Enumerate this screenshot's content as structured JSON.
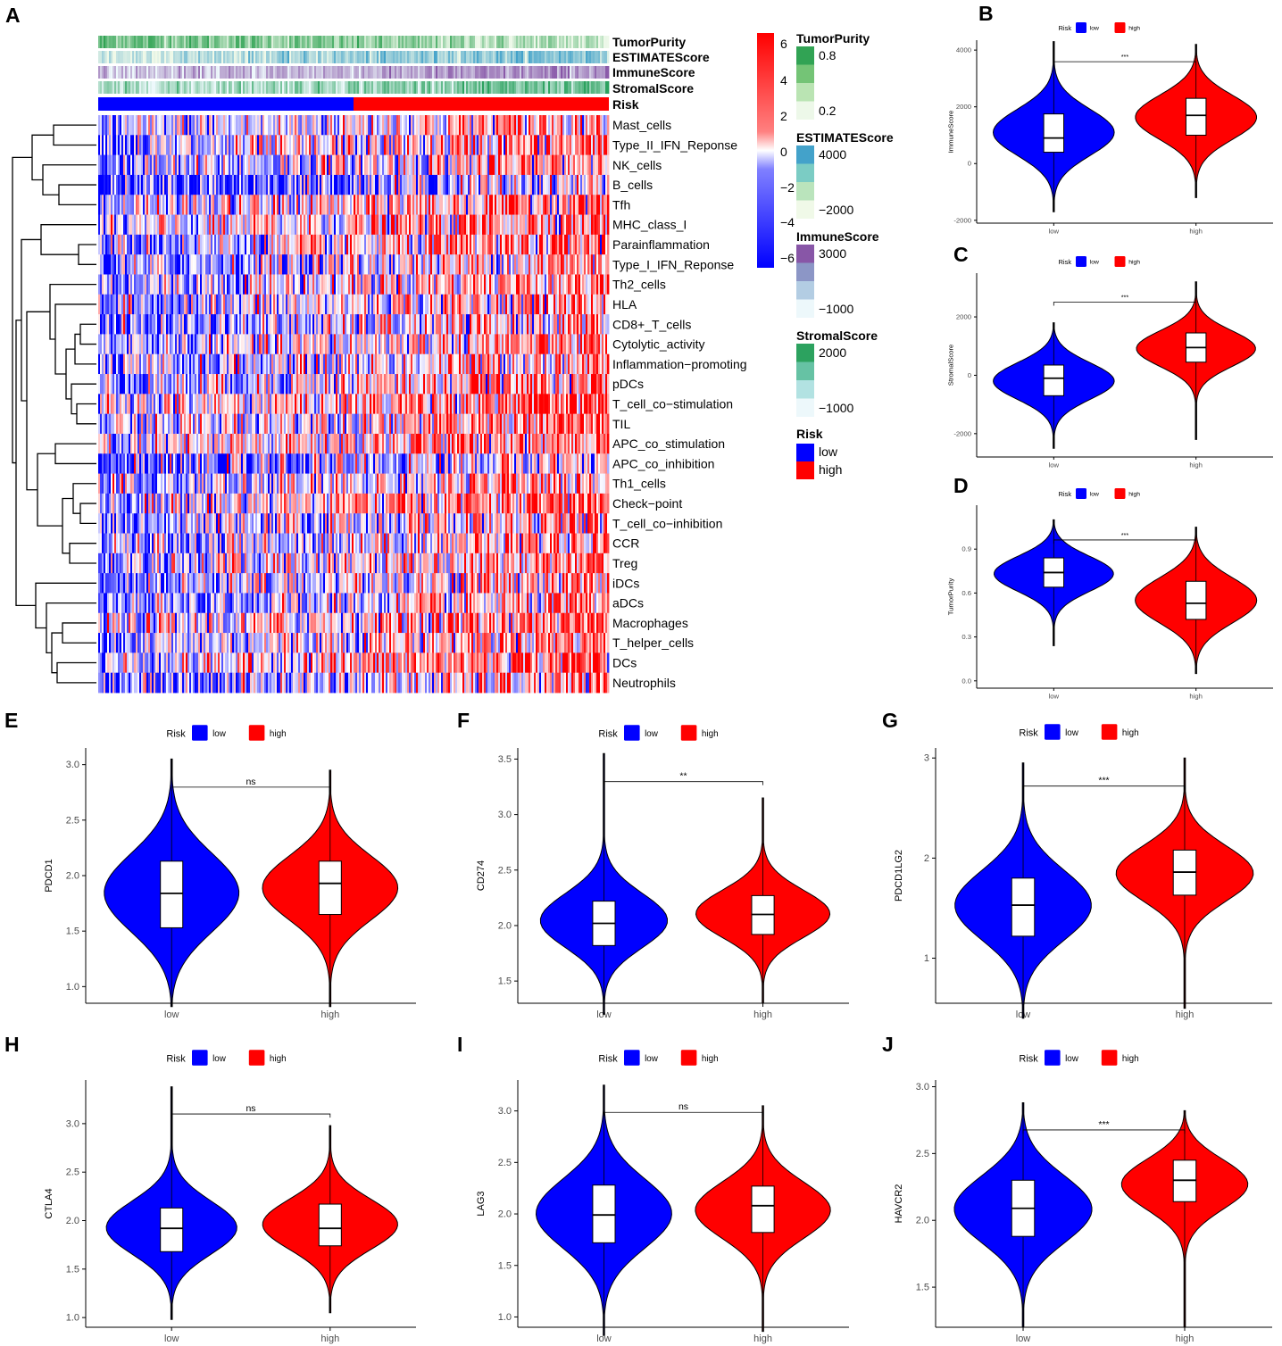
{
  "panels": {
    "A": "A",
    "B": "B",
    "C": "C",
    "D": "D",
    "E": "E",
    "F": "F",
    "G": "G",
    "H": "H",
    "I": "I",
    "J": "J"
  },
  "heatmap": {
    "annotation_labels": [
      "TumorPurity",
      "ESTIMATEScore",
      "ImmuneScore",
      "StromalScore",
      "Risk"
    ],
    "row_labels": [
      "Mast_cells",
      "Type_II_IFN_Reponse",
      "NK_cells",
      "B_cells",
      "Tfh",
      "MHC_class_I",
      "Parainflammation",
      "Type_I_IFN_Reponse",
      "Th2_cells",
      "HLA",
      "CD8+_T_cells",
      "Cytolytic_activity",
      "Inflammation−promoting",
      "pDCs",
      "T_cell_co−stimulation",
      "TIL",
      "APC_co_stimulation",
      "APC_co_inhibition",
      "Th1_cells",
      "Check−point",
      "T_cell_co−inhibition",
      "CCR",
      "Treg",
      "iDCs",
      "aDCs",
      "Macrophages",
      "T_helper_cells",
      "DCs",
      "Neutrophils"
    ],
    "colorbar_ticks": [
      "6",
      "4",
      "2",
      "0",
      "−2",
      "−4",
      "−6"
    ],
    "colors": {
      "high": "#ff0000",
      "mid": "#ffffff",
      "low": "#0000ff"
    },
    "legends": [
      {
        "title": "TumorPurity",
        "ticks": [
          "0.8",
          "0.2"
        ],
        "colors": [
          "#31a354",
          "#74c476",
          "#bae4b3",
          "#edf8e9"
        ]
      },
      {
        "title": "ESTIMATEScore",
        "ticks": [
          "4000",
          "−2000"
        ],
        "colors": [
          "#43a2ca",
          "#7bccc4",
          "#bae4bc",
          "#f0f9e8"
        ]
      },
      {
        "title": "ImmuneScore",
        "ticks": [
          "3000",
          "−1000"
        ],
        "colors": [
          "#8856a7",
          "#8c96c6",
          "#b3cde3",
          "#edf8fb"
        ]
      },
      {
        "title": "StromalScore",
        "ticks": [
          "2000",
          "−1000"
        ],
        "colors": [
          "#2ca25f",
          "#66c2a4",
          "#b2e2e2",
          "#edf8fb"
        ]
      },
      {
        "title": "Risk",
        "items": [
          {
            "label": "low",
            "color": "#0000ff"
          },
          {
            "label": "high",
            "color": "#ff0000"
          }
        ]
      }
    ]
  },
  "chart_data": [
    {
      "panel": "B",
      "type": "violin",
      "legend_title": "Risk",
      "categories": [
        "low",
        "high"
      ],
      "ylabel": "ImmuneScore",
      "yticks": [
        -2000,
        0,
        2000,
        4000
      ],
      "ylim": [
        -2100,
        4350
      ],
      "significance": "***",
      "series": [
        {
          "name": "low",
          "color": "#0000ff",
          "min": -1700,
          "max": 4300,
          "q1": 400,
          "median": 900,
          "q3": 1750
        },
        {
          "name": "high",
          "color": "#ff0000",
          "min": -1200,
          "max": 4200,
          "q1": 1000,
          "median": 1700,
          "q3": 2300
        }
      ]
    },
    {
      "panel": "C",
      "type": "violin",
      "legend_title": "Risk",
      "categories": [
        "low",
        "high"
      ],
      "ylabel": "StromalScore",
      "yticks": [
        -2000,
        0,
        2000
      ],
      "ylim": [
        -2800,
        3500
      ],
      "significance": "***",
      "series": [
        {
          "name": "low",
          "color": "#0000ff",
          "min": -2500,
          "max": 1800,
          "q1": -700,
          "median": -100,
          "q3": 350
        },
        {
          "name": "high",
          "color": "#ff0000",
          "min": -2200,
          "max": 3200,
          "q1": 450,
          "median": 950,
          "q3": 1450
        }
      ]
    },
    {
      "panel": "D",
      "type": "violin",
      "legend_title": "Risk",
      "categories": [
        "low",
        "high"
      ],
      "ylabel": "TumorPurity",
      "yticks": [
        "0.0",
        "0.3",
        "0.6",
        "0.9"
      ],
      "ylim": [
        -0.05,
        1.2
      ],
      "significance": "***",
      "series": [
        {
          "name": "low",
          "color": "#0000ff",
          "min": 0.24,
          "max": 1.1,
          "q1": 0.64,
          "median": 0.74,
          "q3": 0.84
        },
        {
          "name": "high",
          "color": "#ff0000",
          "min": 0.05,
          "max": 1.05,
          "q1": 0.42,
          "median": 0.53,
          "q3": 0.68
        }
      ]
    },
    {
      "panel": "E",
      "type": "violin",
      "legend_title": "Risk",
      "categories": [
        "low",
        "high"
      ],
      "ylabel": "PDCD1",
      "yticks": [
        "1.0",
        "1.5",
        "2.0",
        "2.5",
        "3.0"
      ],
      "ylim": [
        0.85,
        3.15
      ],
      "significance": "ns",
      "series": [
        {
          "name": "low",
          "color": "#0000ff",
          "min": 0.82,
          "max": 3.05,
          "q1": 1.53,
          "median": 1.84,
          "q3": 2.13
        },
        {
          "name": "high",
          "color": "#ff0000",
          "min": 0.82,
          "max": 2.95,
          "q1": 1.65,
          "median": 1.93,
          "q3": 2.13
        }
      ]
    },
    {
      "panel": "F",
      "type": "violin",
      "legend_title": "Risk",
      "categories": [
        "low",
        "high"
      ],
      "ylabel": "CD274",
      "yticks": [
        "1.5",
        "2.0",
        "2.5",
        "3.0",
        "3.5"
      ],
      "ylim": [
        1.3,
        3.6
      ],
      "significance": "**",
      "series": [
        {
          "name": "low",
          "color": "#0000ff",
          "min": 1.2,
          "max": 3.55,
          "q1": 1.82,
          "median": 2.02,
          "q3": 2.22
        },
        {
          "name": "high",
          "color": "#ff0000",
          "min": 1.3,
          "max": 3.15,
          "q1": 1.92,
          "median": 2.1,
          "q3": 2.27
        }
      ]
    },
    {
      "panel": "G",
      "type": "violin",
      "legend_title": "Risk",
      "categories": [
        "low",
        "high"
      ],
      "ylabel": "PDCD1LG2",
      "yticks": [
        1,
        2,
        3
      ],
      "ylim": [
        0.55,
        3.1
      ],
      "significance": "***",
      "series": [
        {
          "name": "low",
          "color": "#0000ff",
          "min": 0.4,
          "max": 2.95,
          "q1": 1.22,
          "median": 1.53,
          "q3": 1.8
        },
        {
          "name": "high",
          "color": "#ff0000",
          "min": 0.5,
          "max": 3.0,
          "q1": 1.63,
          "median": 1.86,
          "q3": 2.08
        }
      ]
    },
    {
      "panel": "H",
      "type": "violin",
      "legend_title": "Risk",
      "categories": [
        "low",
        "high"
      ],
      "ylabel": "CTLA4",
      "yticks": [
        "1.0",
        "1.5",
        "2.0",
        "2.5",
        "3.0"
      ],
      "ylim": [
        0.9,
        3.45
      ],
      "significance": "ns",
      "series": [
        {
          "name": "low",
          "color": "#0000ff",
          "min": 0.98,
          "max": 3.38,
          "q1": 1.68,
          "median": 1.92,
          "q3": 2.13
        },
        {
          "name": "high",
          "color": "#ff0000",
          "min": 1.05,
          "max": 2.98,
          "q1": 1.74,
          "median": 1.92,
          "q3": 2.17
        }
      ]
    },
    {
      "panel": "I",
      "type": "violin",
      "legend_title": "Risk",
      "categories": [
        "low",
        "high"
      ],
      "ylabel": "LAG3",
      "yticks": [
        "1.0",
        "1.5",
        "2.0",
        "2.5",
        "3.0"
      ],
      "ylim": [
        0.9,
        3.3
      ],
      "significance": "ns",
      "series": [
        {
          "name": "low",
          "color": "#0000ff",
          "min": 0.82,
          "max": 3.25,
          "q1": 1.72,
          "median": 1.99,
          "q3": 2.28
        },
        {
          "name": "high",
          "color": "#ff0000",
          "min": 0.86,
          "max": 3.05,
          "q1": 1.82,
          "median": 2.08,
          "q3": 2.27
        }
      ]
    },
    {
      "panel": "J",
      "type": "violin",
      "legend_title": "Risk",
      "categories": [
        "low",
        "high"
      ],
      "ylabel": "HAVCR2",
      "yticks": [
        "1.5",
        "2.0",
        "2.5",
        "3.0"
      ],
      "ylim": [
        1.2,
        3.05
      ],
      "significance": "***",
      "series": [
        {
          "name": "low",
          "color": "#0000ff",
          "min": 1.2,
          "max": 2.88,
          "q1": 1.88,
          "median": 2.09,
          "q3": 2.3
        },
        {
          "name": "high",
          "color": "#ff0000",
          "min": 1.2,
          "max": 2.82,
          "q1": 2.14,
          "median": 2.3,
          "q3": 2.45
        }
      ]
    }
  ]
}
